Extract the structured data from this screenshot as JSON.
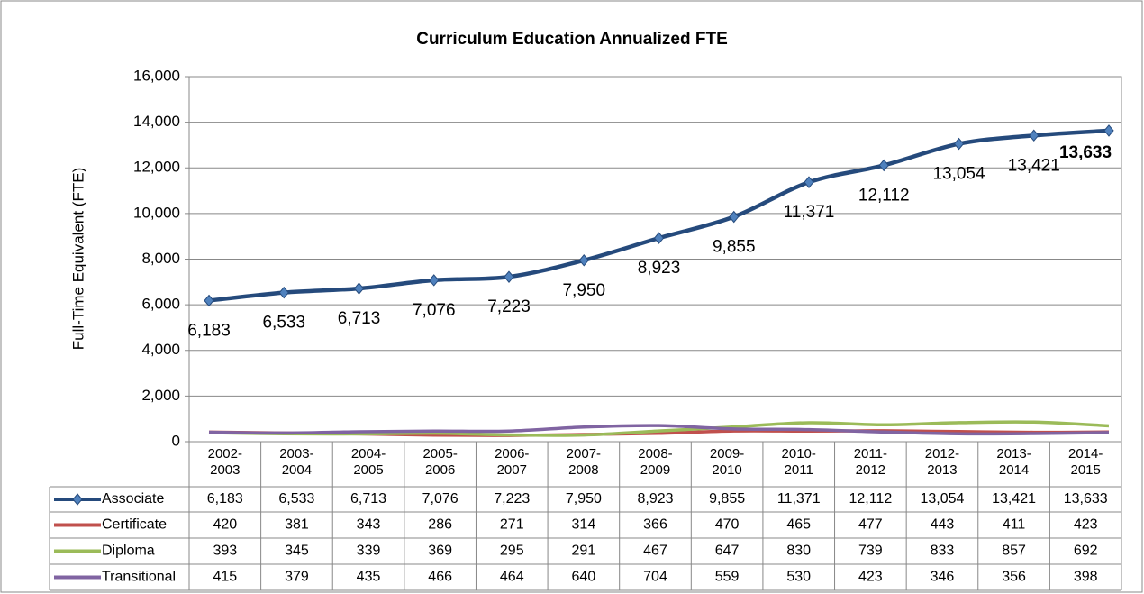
{
  "chart_data": {
    "type": "line",
    "title": "Curriculum Education Annualized FTE",
    "y_label": "Full-Time Equivalent (FTE)",
    "categories": [
      "2002-2003",
      "2003-2004",
      "2004-2005",
      "2005-2006",
      "2006-2007",
      "2007-2008",
      "2008-2009",
      "2009-2010",
      "2010-2011",
      "2011-2012",
      "2012-2013",
      "2013-2014",
      "2014-2015"
    ],
    "ylim": [
      0,
      16000
    ],
    "yticks": [
      0,
      {
        "value": 2000,
        "label": "2,000"
      },
      {
        "value": 4000,
        "label": "4,000"
      },
      {
        "value": 6000,
        "label": "6,000"
      },
      {
        "value": 8000,
        "label": "8,000"
      },
      {
        "value": 10000,
        "label": "10,000"
      },
      {
        "value": 12000,
        "label": "12,000"
      },
      {
        "value": 14000,
        "label": "14,000"
      },
      {
        "value": 16000,
        "label": "16,000"
      }
    ],
    "grid": true,
    "series": [
      {
        "name": "Associate",
        "color": "#254a7c",
        "values": [
          6183,
          6533,
          6713,
          7076,
          7223,
          7950,
          8923,
          9855,
          11371,
          12112,
          13054,
          13421,
          13633
        ],
        "value_labels": [
          "6,183",
          "6,533",
          "6,713",
          "7,076",
          "7,223",
          "7,950",
          "8,923",
          "9,855",
          "11,371",
          "12,112",
          "13,054",
          "13,421",
          "13,633"
        ]
      },
      {
        "name": "Certificate",
        "color": "#c0504d",
        "values": [
          420,
          381,
          343,
          286,
          271,
          314,
          366,
          470,
          465,
          477,
          443,
          411,
          423
        ]
      },
      {
        "name": "Diploma",
        "color": "#9bbb59",
        "values": [
          393,
          345,
          339,
          369,
          295,
          291,
          467,
          647,
          830,
          739,
          833,
          857,
          692
        ]
      },
      {
        "name": "Transitional",
        "color": "#8064a2",
        "values": [
          415,
          379,
          435,
          466,
          464,
          640,
          704,
          559,
          530,
          423,
          346,
          356,
          398
        ]
      }
    ]
  }
}
